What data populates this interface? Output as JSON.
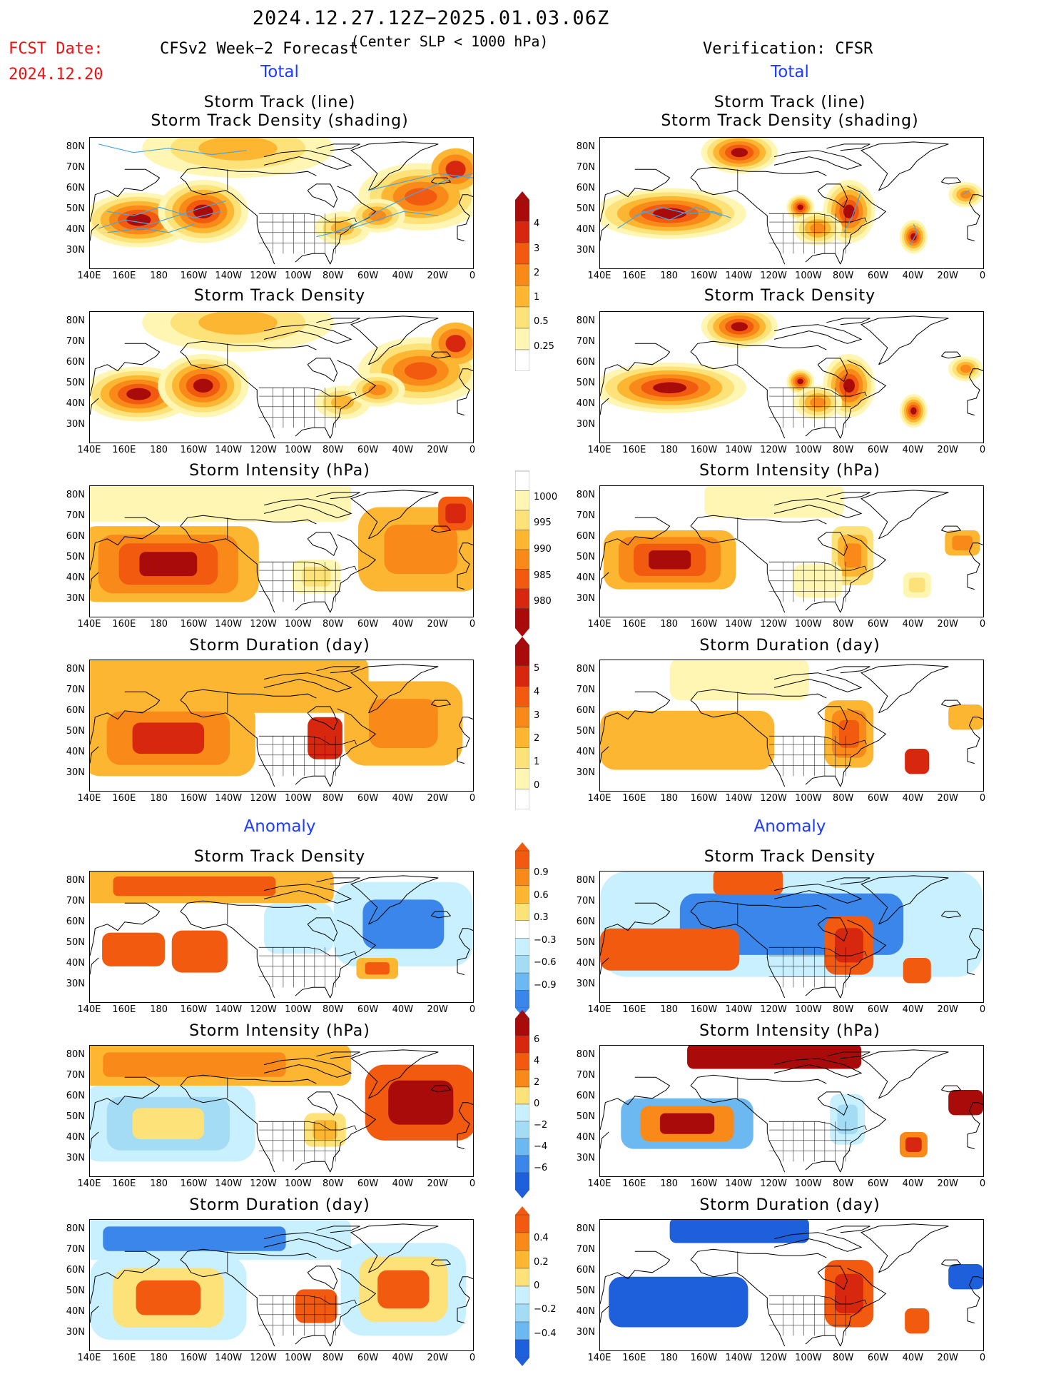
{
  "header": {
    "period": "2024.12.27.12Z−2025.01.03.06Z",
    "criterion": "(Center SLP < 1000 hPa)",
    "fcst_label": "FCST Date:",
    "fcst_date": "2024.12.20",
    "left_title": "CFSv2 Week−2 Forecast",
    "right_title": "Verification: CFSR",
    "total_label": "Total",
    "anomaly_label": "Anomaly"
  },
  "axes": {
    "lat_ticks": [
      "80N",
      "70N",
      "60N",
      "50N",
      "40N",
      "30N"
    ],
    "lon_ticks": [
      "140E",
      "160E",
      "180",
      "160W",
      "140W",
      "120W",
      "100W",
      "80W",
      "60W",
      "40W",
      "20W",
      "0"
    ]
  },
  "panels": {
    "track_title_1": "Storm Track (line)",
    "track_title_2": "Storm Track Density (shading)",
    "density": "Storm Track Density",
    "intensity": "Storm Intensity (hPa)",
    "duration": "Storm Duration (day)"
  },
  "colorbars": {
    "density": [
      "4",
      "3",
      "2",
      "1",
      "0.5",
      "0.25"
    ],
    "intensity": [
      "1000",
      "995",
      "990",
      "985",
      "980"
    ],
    "duration": [
      "5",
      "4",
      "3",
      "2",
      "1",
      "0"
    ],
    "density_anom": [
      "0.9",
      "0.6",
      "0.3",
      "−0.3",
      "−0.6",
      "−0.9"
    ],
    "intensity_anom": [
      "6",
      "4",
      "2",
      "0",
      "−2",
      "−4",
      "−6"
    ],
    "duration_anom": [
      "0.4",
      "0.2",
      "0",
      "−0.2",
      "−0.4"
    ]
  },
  "colors": {
    "warm": [
      "#fff6b3",
      "#fde27a",
      "#fcb632",
      "#f98a1a",
      "#f15a0f",
      "#d7280f",
      "#a90b0b"
    ],
    "cool": [
      "#c8f0ff",
      "#a4dbf5",
      "#6cb8f0",
      "#3a86ea",
      "#1e5fdc"
    ],
    "track_line": "#4aa5e0"
  }
}
